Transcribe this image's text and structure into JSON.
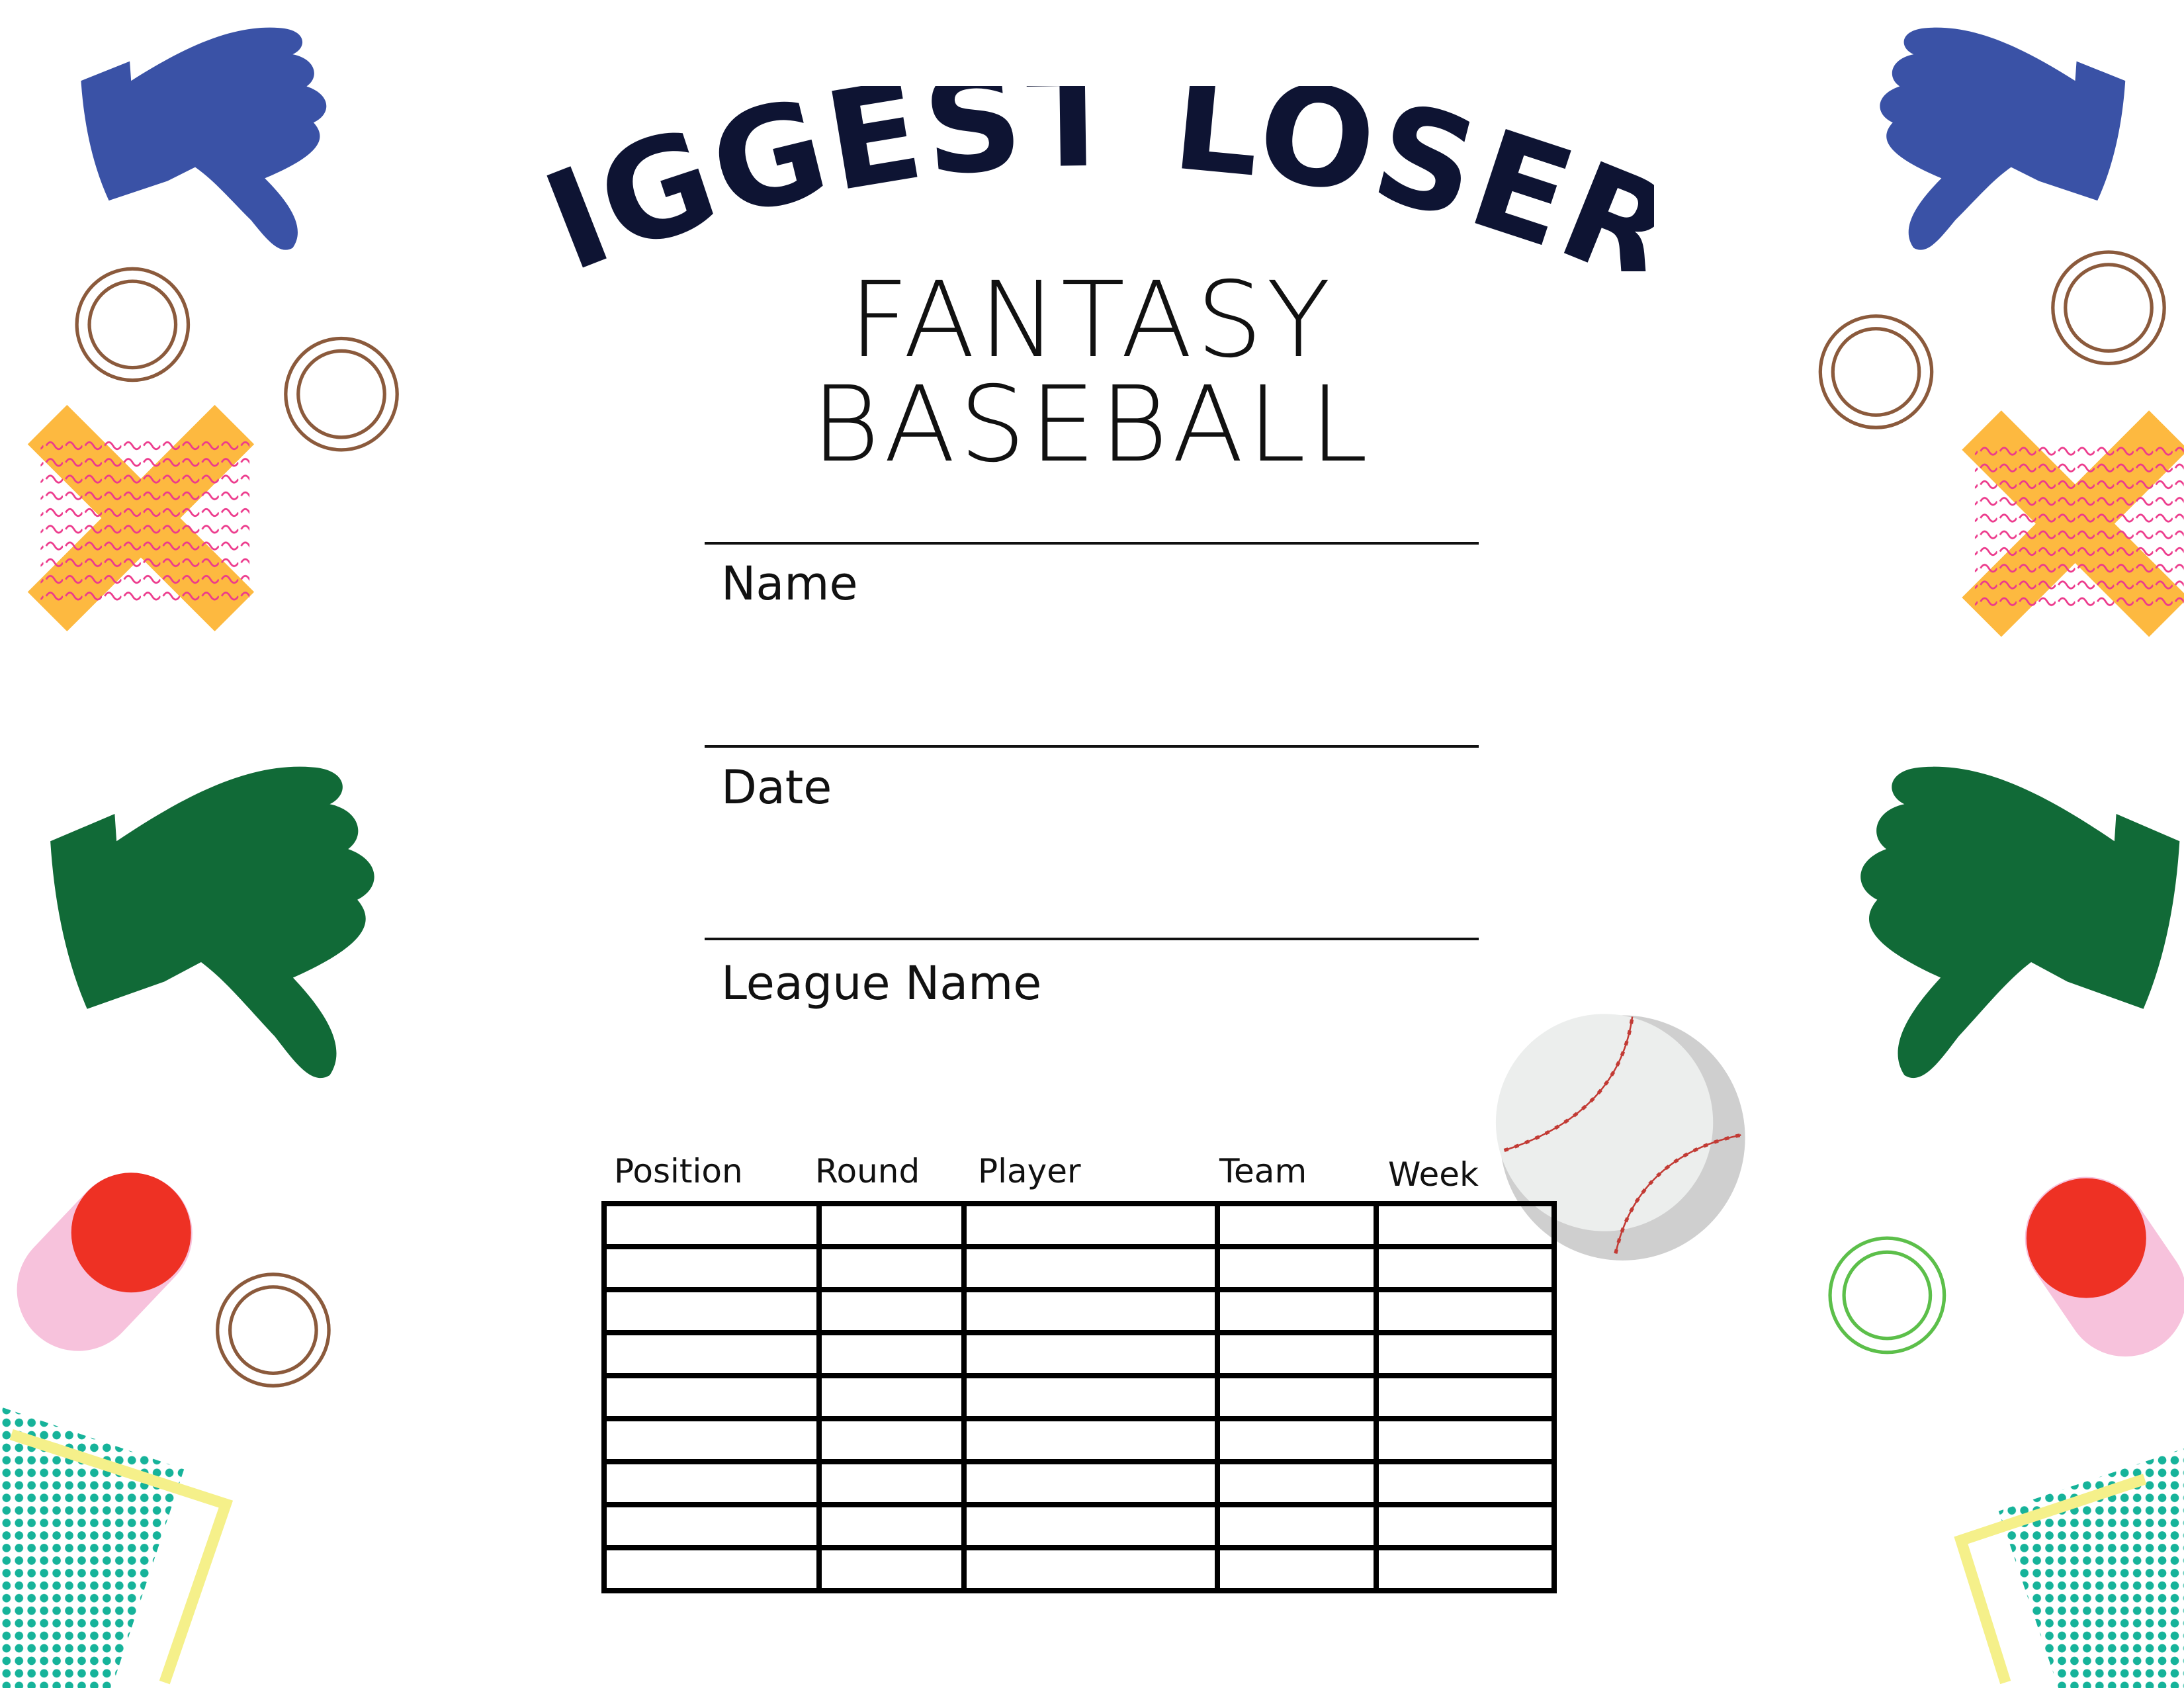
{
  "title": "BIGGEST LOSER!",
  "subtitle": "FANTASY BASEBALL",
  "fields": [
    {
      "label": "Name"
    },
    {
      "label": "Date"
    },
    {
      "label": "League Name"
    }
  ],
  "table": {
    "headers": [
      "Position",
      "Round",
      "Player",
      "Team",
      "Week"
    ],
    "row_count": 9
  },
  "colors": {
    "title": "#0e1433",
    "thumb_blue": "#3a52a6",
    "thumb_green": "#116a37",
    "x_yellow": "#fdb940",
    "ring_brown": "#8b5a3c",
    "ring_green": "#5cbf4a",
    "dot_red": "#ee3124",
    "pill_pink": "#f7c2dc",
    "dot_teal": "#16b39a",
    "frame_yellow": "#f5f08a"
  },
  "icons": [
    "thumbs-down-icon",
    "ring-icon",
    "x-mark-icon",
    "baseball-icon",
    "dot-grid-icon"
  ]
}
